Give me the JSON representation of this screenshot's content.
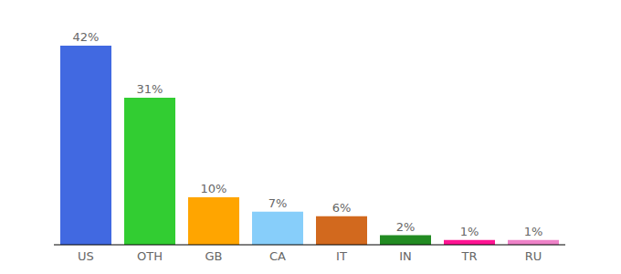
{
  "chart_data": {
    "type": "bar",
    "categories": [
      "US",
      "OTH",
      "GB",
      "CA",
      "IT",
      "IN",
      "TR",
      "RU"
    ],
    "values": [
      42,
      31,
      10,
      7,
      6,
      2,
      1,
      1
    ],
    "value_labels": [
      "42%",
      "31%",
      "10%",
      "7%",
      "6%",
      "2%",
      "1%",
      "1%"
    ],
    "colors": [
      "#4169e1",
      "#32cd32",
      "#ffa500",
      "#87cefa",
      "#d2691e",
      "#228b22",
      "#ff1493",
      "#ee82c8"
    ],
    "data_labels": true,
    "tick_labels": "x",
    "grid": false
  }
}
